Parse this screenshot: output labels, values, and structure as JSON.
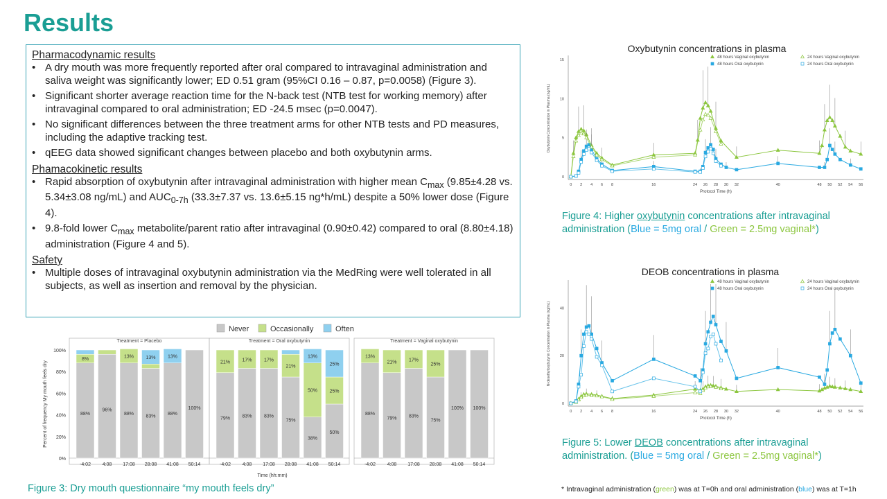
{
  "slide": {
    "title": "Results",
    "pd_heading": "Pharmacodynamic results",
    "pd_items": [
      "A dry mouth was more frequently reported after oral compared to intravaginal administration and saliva weight was significantly lower; ED 0.51 gram (95%CI 0.16 – 0.87, p=0.0058) (Figure 3).",
      "Significant shorter average reaction time for the N-back test (NTB test for working memory) after intravaginal compared to oral administration; ED -24.5 msec (p=0.0047).",
      "No significant differences between the three treatment arms for other NTB tests and PD measures, including the adaptive tracking test.",
      "qEEG data showed significant changes between placebo and both oxybutynin arms."
    ],
    "pk_heading": "Phamacokinetic results",
    "pk_item1": {
      "a": "Rapid absorption of oxybutynin after intravaginal administration with higher mean C",
      "sub1": "max",
      "b": " (9.85±4.28 vs. 5.34±3.08 ng/mL) and AUC",
      "sub2": "0-7h",
      "c": " (33.3±7.37 vs. 13.6±5.15 ng*h/mL) despite a 50% lower dose (Figure 4)."
    },
    "pk_item2": {
      "a": "9.8-fold lower C",
      "sub1": "max",
      "b": " metabolite/parent ratio after intravaginal (0.90±0.42) compared to oral (8.80±4.18) administration (Figure 4 and 5)."
    },
    "safety_heading": "Safety",
    "safety_items": [
      "Multiple doses of intravaginal oxybutynin administration via the MedRing were well tolerated in all subjects, as well as insertion and removal by the physician."
    ],
    "fig3_caption": "Figure 3: Dry mouth questionnaire “my mouth feels dry”",
    "fig4_title": "Oxybutynin concentrations in plasma",
    "fig4_caption": {
      "a": "Figure 4: Higher ",
      "u": "oxybutynin",
      "b": " concentrations after intravaginal administration (",
      "blue": "Blue = 5mg oral",
      "sep": " / ",
      "green": "Green = 2.5mg vaginal*",
      "c": ")"
    },
    "fig5_title": "DEOB concentrations in plasma",
    "fig5_caption": {
      "a": "Figure 5: Lower ",
      "u": "DEOB",
      "b": " concentrations after intravaginal administration. (",
      "blue": "Blue = 5mg oral",
      "sep": " / ",
      "green": "Green = 2.5mg vaginal*",
      "c": ")"
    },
    "footnote": {
      "a": "* Intravaginal administration (",
      "green": "green",
      "b": ") was at T=0h and oral administration (",
      "blue": "blue",
      "c": ") was at T=1h"
    }
  },
  "colors": {
    "teal": "#1a9e94",
    "blue": "#29a9e1",
    "green": "#8cc63f",
    "never": "#c8c8c8",
    "occasionally": "#c5e08a",
    "often": "#8fd0ef"
  },
  "chart_data": [
    {
      "type": "bar",
      "stacked": true,
      "legend": [
        "Never",
        "Occasionally",
        "Often"
      ],
      "ylabel": "Percent of frequency My mouth feels dry",
      "xlabel": "Time (hh:mm)",
      "yticks": [
        "0%",
        "20%",
        "40%",
        "60%",
        "80%",
        "100%"
      ],
      "panels": [
        {
          "title": "Treatment = Placebo",
          "categories": [
            "-4:02",
            "4:08",
            "17:08",
            "28:08",
            "41:08",
            "50:14"
          ],
          "series": [
            {
              "name": "Never",
              "values": [
                88,
                96,
                88,
                83,
                88,
                100
              ],
              "labels": [
                "88%",
                "96%",
                "88%",
                "83%",
                "88%",
                "100%"
              ]
            },
            {
              "name": "Occasionally",
              "values": [
                8,
                4,
                13,
                4,
                0,
                0
              ],
              "labels": [
                "8%",
                "",
                "13%",
                "",
                "",
                ""
              ]
            },
            {
              "name": "Often",
              "values": [
                4,
                0,
                0,
                13,
                13,
                0
              ],
              "labels": [
                "",
                "",
                "",
                "13%",
                "13%",
                ""
              ]
            }
          ]
        },
        {
          "title": "Treatment = Oral oxybutynin",
          "categories": [
            "-4:02",
            "4:08",
            "17:08",
            "28:08",
            "41:08",
            "50:14"
          ],
          "series": [
            {
              "name": "Never",
              "values": [
                79,
                83,
                83,
                75,
                38,
                50
              ],
              "labels": [
                "79%",
                "83%",
                "83%",
                "75%",
                "38%",
                "50%"
              ]
            },
            {
              "name": "Occasionally",
              "values": [
                21,
                17,
                17,
                21,
                50,
                25
              ],
              "labels": [
                "21%",
                "17%",
                "17%",
                "21%",
                "50%",
                "25%"
              ]
            },
            {
              "name": "Often",
              "values": [
                0,
                0,
                0,
                4,
                13,
                25
              ],
              "labels": [
                "",
                "",
                "",
                "",
                "13%",
                "25%"
              ]
            }
          ]
        },
        {
          "title": "Treatment = Vaginal oxybutynin",
          "categories": [
            "-4:02",
            "4:08",
            "17:08",
            "28:08",
            "41:08",
            "50:14"
          ],
          "series": [
            {
              "name": "Never",
              "values": [
                88,
                79,
                83,
                75,
                100,
                100
              ],
              "labels": [
                "88%",
                "79%",
                "83%",
                "75%",
                "100%",
                "100%"
              ]
            },
            {
              "name": "Occasionally",
              "values": [
                13,
                21,
                17,
                25,
                0,
                0
              ],
              "labels": [
                "13%",
                "21%",
                "17%",
                "25%",
                "",
                ""
              ]
            },
            {
              "name": "Often",
              "values": [
                0,
                0,
                0,
                0,
                0,
                0
              ],
              "labels": [
                "",
                "",
                "",
                "",
                "",
                ""
              ]
            }
          ]
        }
      ]
    },
    {
      "type": "line",
      "ylabel": "Oxybutynin Concentration in Plasma (ng/mL)",
      "xlabel": "Protocol Time (h)",
      "ylim": [
        0,
        15
      ],
      "yticks": [
        0,
        5,
        10,
        15
      ],
      "xticks": [
        0,
        2,
        4,
        6,
        8,
        16,
        24,
        26,
        28,
        30,
        32,
        40,
        48,
        50,
        52,
        54,
        56
      ],
      "xlim": [
        -0.5,
        56.5
      ],
      "legend": [
        "48 hours Vaginal oxybutynin",
        "48 hours Oral oxybutynin",
        "24 hours Vaginal oxybutynin",
        "24 hours Oral oxybutynin"
      ],
      "series": [
        {
          "name": "48 hours Vaginal oxybutynin",
          "color": "#8cc63f",
          "marker": "triangle-filled",
          "x": [
            0,
            0.5,
            1,
            1.5,
            2,
            2.5,
            3,
            4,
            5,
            6,
            8,
            16,
            24,
            24.5,
            25,
            25.5,
            26,
            26.5,
            27,
            28,
            29,
            32,
            40,
            48,
            48.5,
            49,
            49.5,
            50,
            50.5,
            51,
            52,
            53,
            54,
            56
          ],
          "y": [
            0,
            3,
            5,
            5.8,
            6.1,
            5.9,
            5.4,
            4,
            3,
            2.4,
            1.5,
            2.8,
            3,
            4.7,
            7.5,
            8.8,
            9.5,
            9.1,
            8.4,
            6.2,
            4.6,
            2.5,
            3.4,
            3,
            4,
            6,
            7.2,
            7.6,
            7.2,
            6.5,
            5.2,
            3.8,
            3.3,
            2.9
          ]
        },
        {
          "name": "48 hours Oral oxybutynin",
          "color": "#29a9e1",
          "marker": "square-filled",
          "x": [
            0,
            1,
            1.5,
            2,
            2.5,
            3,
            3.5,
            4,
            5,
            6,
            8,
            16,
            24,
            25,
            25.5,
            26,
            26.5,
            27,
            27.5,
            28,
            29,
            30,
            32,
            40,
            48,
            49,
            49.5,
            50,
            50.5,
            51,
            52,
            54,
            56
          ],
          "y": [
            0,
            0.1,
            0.7,
            2.2,
            3.3,
            3.9,
            4.1,
            3.5,
            2.3,
            1.6,
            0.8,
            1.3,
            0.7,
            0.7,
            1.3,
            3.1,
            3.7,
            4.1,
            3.5,
            2.3,
            1.6,
            1.2,
            0.9,
            1.7,
            1.2,
            1.2,
            2.2,
            4,
            3.5,
            2.9,
            2.2,
            1.5,
            1
          ]
        },
        {
          "name": "24 hours Vaginal oxybutynin",
          "color": "#8cc63f",
          "marker": "triangle-open",
          "x": [
            0,
            0.5,
            1,
            1.5,
            2,
            2.5,
            3,
            4,
            5,
            6,
            8,
            16,
            24,
            25,
            25.5,
            26,
            26.5,
            27,
            28,
            29
          ],
          "y": [
            0,
            2.6,
            4.6,
            5.3,
            5.6,
            5.5,
            5,
            3.8,
            2.8,
            2.2,
            1.4,
            2.5,
            2.8,
            6,
            7.3,
            8,
            7.9,
            7.5,
            5.8,
            4.2
          ]
        },
        {
          "name": "24 hours Oral oxybutynin",
          "color": "#29a9e1",
          "marker": "square-open",
          "x": [
            0,
            1,
            1.5,
            2,
            2.5,
            3,
            3.5,
            4,
            5,
            6,
            8,
            16,
            24,
            25,
            25.5,
            26,
            26.5,
            27,
            27.5,
            28,
            29
          ],
          "y": [
            0,
            0.1,
            0.5,
            1.9,
            2.9,
            3.4,
            3.6,
            3.1,
            2.1,
            1.4,
            0.7,
            1,
            0.6,
            0.6,
            1.1,
            2.6,
            3.2,
            3.6,
            3,
            2,
            1.4
          ]
        }
      ]
    },
    {
      "type": "line",
      "ylabel": "N-desethyloxybutynin Concentration in Plasma (ng/mL)",
      "xlabel": "Protocol Time (h)",
      "ylim": [
        0,
        50
      ],
      "yticks": [
        0,
        20,
        40
      ],
      "xticks": [
        0,
        2,
        4,
        6,
        8,
        16,
        24,
        26,
        28,
        30,
        32,
        40,
        48,
        50,
        52,
        54,
        56
      ],
      "xlim": [
        -0.5,
        56.5
      ],
      "legend": [
        "48 hours Vaginal oxybutynin",
        "48 hours Oral oxybutynin",
        "24 hours Vaginal oxybutynin",
        "24 hours Oral oxybutynin"
      ],
      "series": [
        {
          "name": "48 hours Vaginal oxybutynin",
          "color": "#8cc63f",
          "marker": "triangle-filled",
          "x": [
            0,
            1,
            1.5,
            2,
            2.5,
            3,
            4,
            5,
            6,
            8,
            16,
            24,
            25,
            25.5,
            26,
            26.5,
            27,
            27.5,
            28,
            29,
            30,
            32,
            40,
            48,
            48.5,
            49,
            49.5,
            50,
            50.5,
            51,
            52,
            53,
            54,
            56
          ],
          "y": [
            0,
            0.6,
            1.8,
            3,
            3.8,
            4,
            3.8,
            3.5,
            3,
            2,
            3.5,
            6,
            5.5,
            6,
            7,
            7.5,
            7.6,
            7.4,
            7.2,
            6.6,
            6,
            5,
            5.8,
            5.2,
            5.8,
            6.4,
            6.8,
            7.2,
            7,
            6.8,
            6.5,
            6.2,
            5.8,
            5
          ]
        },
        {
          "name": "48 hours Oral oxybutynin",
          "color": "#29a9e1",
          "marker": "square-filled",
          "x": [
            0,
            1,
            1.5,
            2,
            2.5,
            3,
            3.5,
            4,
            5,
            6,
            8,
            16,
            24,
            25,
            25.5,
            26,
            26.5,
            27,
            27.5,
            28,
            29,
            30,
            32,
            40,
            48,
            49,
            49.5,
            50,
            50.5,
            51,
            52,
            54,
            56
          ],
          "y": [
            0,
            1,
            8,
            20,
            29,
            32,
            32.5,
            29,
            23,
            17,
            9.5,
            18.5,
            11.5,
            9.5,
            14,
            25,
            30,
            34,
            36.5,
            33,
            26,
            22,
            10.5,
            15,
            11,
            8,
            14,
            25,
            29.5,
            31,
            27,
            20,
            8.5
          ]
        },
        {
          "name": "24 hours Vaginal oxybutynin",
          "color": "#8cc63f",
          "marker": "triangle-open",
          "x": [
            0,
            1,
            1.5,
            2,
            2.5,
            3,
            4,
            5,
            6,
            8,
            16,
            24,
            25,
            25.5,
            26,
            26.5,
            27,
            28,
            29
          ],
          "y": [
            0,
            0.5,
            1.5,
            2.5,
            3.3,
            3.5,
            3.3,
            3.2,
            2.8,
            1.7,
            3,
            4.5,
            4.2,
            5.5,
            6.5,
            7,
            7.1,
            6.8,
            6.2
          ]
        },
        {
          "name": "24 hours Oral oxybutynin",
          "color": "#29a9e1",
          "marker": "square-open",
          "x": [
            0,
            1,
            1.5,
            2,
            2.5,
            3,
            3.5,
            4,
            5,
            6,
            8,
            16,
            24,
            25,
            25.5,
            26,
            26.5,
            27,
            27.5,
            28,
            29
          ],
          "y": [
            0,
            0.8,
            7,
            12,
            24,
            30,
            29,
            27,
            19.5,
            16,
            5,
            10.5,
            7,
            5,
            13,
            21,
            23,
            28,
            29,
            25,
            18
          ]
        }
      ]
    }
  ]
}
